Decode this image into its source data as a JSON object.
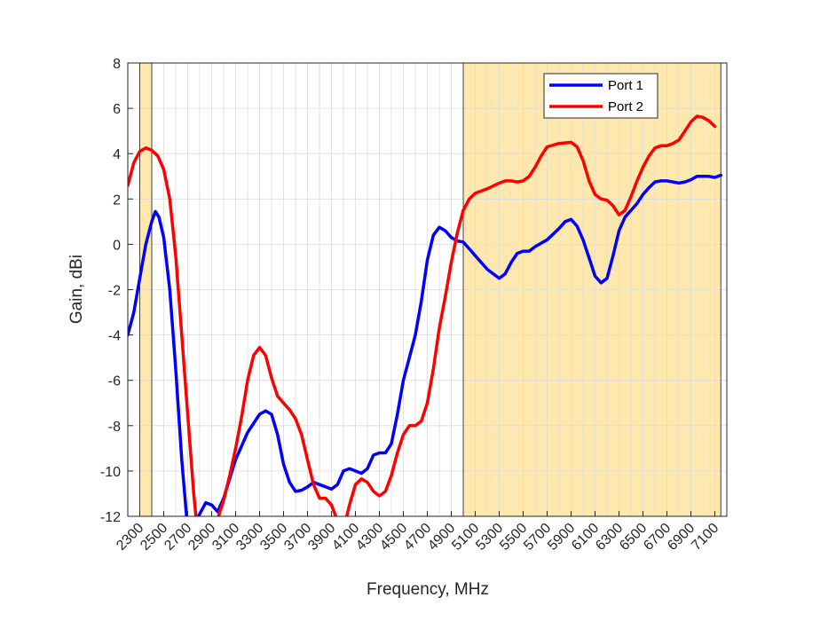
{
  "chart_data": {
    "type": "line",
    "xlabel": "Frequency, MHz",
    "ylabel": "Gain, dBi",
    "xlim": [
      2200,
      7200
    ],
    "ylim": [
      -12,
      8
    ],
    "x_ticks": [
      2300,
      2500,
      2700,
      2900,
      3100,
      3300,
      3500,
      3700,
      3900,
      4100,
      4300,
      4500,
      4700,
      4900,
      5100,
      5300,
      5500,
      5700,
      5900,
      6100,
      6300,
      6500,
      6700,
      6900,
      7100
    ],
    "y_ticks": [
      -12,
      -10,
      -8,
      -6,
      -4,
      -2,
      0,
      2,
      4,
      6,
      8
    ],
    "grid": true,
    "legend_position": "top-right",
    "highlight_bands": [
      {
        "range": [
          2300,
          2400
        ],
        "color": "#FFE8AE"
      },
      {
        "range": [
          5000,
          7150
        ],
        "color": "#FFE8AE"
      }
    ],
    "series": [
      {
        "name": "Port 1",
        "color": "#0000FF",
        "points": [
          [
            2200,
            -4.0
          ],
          [
            2250,
            -3.0
          ],
          [
            2300,
            -1.5
          ],
          [
            2350,
            0.0
          ],
          [
            2400,
            1.0
          ],
          [
            2430,
            1.45
          ],
          [
            2460,
            1.2
          ],
          [
            2500,
            0.3
          ],
          [
            2550,
            -2.0
          ],
          [
            2600,
            -5.5
          ],
          [
            2650,
            -9.5
          ],
          [
            2700,
            -12.6
          ],
          [
            2750,
            -12.4
          ],
          [
            2800,
            -11.9
          ],
          [
            2850,
            -11.4
          ],
          [
            2900,
            -11.5
          ],
          [
            2950,
            -11.8
          ],
          [
            3000,
            -11.2
          ],
          [
            3100,
            -9.5
          ],
          [
            3200,
            -8.3
          ],
          [
            3300,
            -7.5
          ],
          [
            3350,
            -7.35
          ],
          [
            3400,
            -7.5
          ],
          [
            3450,
            -8.4
          ],
          [
            3500,
            -9.7
          ],
          [
            3550,
            -10.5
          ],
          [
            3600,
            -10.9
          ],
          [
            3650,
            -10.85
          ],
          [
            3700,
            -10.7
          ],
          [
            3750,
            -10.5
          ],
          [
            3800,
            -10.6
          ],
          [
            3850,
            -10.7
          ],
          [
            3900,
            -10.8
          ],
          [
            3950,
            -10.6
          ],
          [
            4000,
            -10.0
          ],
          [
            4050,
            -9.9
          ],
          [
            4100,
            -10.0
          ],
          [
            4150,
            -10.1
          ],
          [
            4200,
            -9.9
          ],
          [
            4250,
            -9.3
          ],
          [
            4300,
            -9.2
          ],
          [
            4350,
            -9.2
          ],
          [
            4400,
            -8.8
          ],
          [
            4450,
            -7.5
          ],
          [
            4500,
            -6.0
          ],
          [
            4550,
            -5.0
          ],
          [
            4600,
            -4.0
          ],
          [
            4650,
            -2.5
          ],
          [
            4700,
            -0.7
          ],
          [
            4750,
            0.4
          ],
          [
            4800,
            0.75
          ],
          [
            4850,
            0.6
          ],
          [
            4900,
            0.3
          ],
          [
            4950,
            0.15
          ],
          [
            5000,
            0.1
          ],
          [
            5050,
            -0.2
          ],
          [
            5100,
            -0.5
          ],
          [
            5200,
            -1.1
          ],
          [
            5300,
            -1.5
          ],
          [
            5350,
            -1.3
          ],
          [
            5400,
            -0.8
          ],
          [
            5450,
            -0.4
          ],
          [
            5500,
            -0.3
          ],
          [
            5550,
            -0.3
          ],
          [
            5600,
            -0.1
          ],
          [
            5700,
            0.2
          ],
          [
            5800,
            0.7
          ],
          [
            5850,
            1.0
          ],
          [
            5900,
            1.1
          ],
          [
            5950,
            0.8
          ],
          [
            6000,
            0.2
          ],
          [
            6050,
            -0.6
          ],
          [
            6100,
            -1.4
          ],
          [
            6150,
            -1.7
          ],
          [
            6200,
            -1.5
          ],
          [
            6250,
            -0.5
          ],
          [
            6300,
            0.6
          ],
          [
            6350,
            1.2
          ],
          [
            6400,
            1.5
          ],
          [
            6450,
            1.8
          ],
          [
            6500,
            2.2
          ],
          [
            6550,
            2.5
          ],
          [
            6600,
            2.75
          ],
          [
            6650,
            2.8
          ],
          [
            6700,
            2.8
          ],
          [
            6750,
            2.75
          ],
          [
            6800,
            2.7
          ],
          [
            6850,
            2.75
          ],
          [
            6900,
            2.85
          ],
          [
            6950,
            3.0
          ],
          [
            7000,
            3.0
          ],
          [
            7050,
            3.0
          ],
          [
            7100,
            2.95
          ],
          [
            7150,
            3.05
          ]
        ]
      },
      {
        "name": "Port 2",
        "color": "#FF0000",
        "points": [
          [
            2200,
            2.6
          ],
          [
            2250,
            3.6
          ],
          [
            2300,
            4.1
          ],
          [
            2350,
            4.25
          ],
          [
            2400,
            4.15
          ],
          [
            2450,
            3.9
          ],
          [
            2500,
            3.3
          ],
          [
            2550,
            2.0
          ],
          [
            2600,
            -0.5
          ],
          [
            2650,
            -4.0
          ],
          [
            2700,
            -7.5
          ],
          [
            2750,
            -11.0
          ],
          [
            2780,
            -12.6
          ],
          [
            2800,
            -12.8
          ],
          [
            2850,
            -12.6
          ],
          [
            2900,
            -12.4
          ],
          [
            2950,
            -12.1
          ],
          [
            3000,
            -11.3
          ],
          [
            3050,
            -10.2
          ],
          [
            3100,
            -9.0
          ],
          [
            3150,
            -7.6
          ],
          [
            3200,
            -6.0
          ],
          [
            3250,
            -4.9
          ],
          [
            3300,
            -4.55
          ],
          [
            3350,
            -4.9
          ],
          [
            3400,
            -5.9
          ],
          [
            3450,
            -6.7
          ],
          [
            3500,
            -7.0
          ],
          [
            3550,
            -7.3
          ],
          [
            3600,
            -7.7
          ],
          [
            3650,
            -8.4
          ],
          [
            3700,
            -9.5
          ],
          [
            3750,
            -10.6
          ],
          [
            3800,
            -11.2
          ],
          [
            3850,
            -11.2
          ],
          [
            3900,
            -11.5
          ],
          [
            3950,
            -12.2
          ],
          [
            4000,
            -12.6
          ],
          [
            4050,
            -11.5
          ],
          [
            4100,
            -10.6
          ],
          [
            4150,
            -10.35
          ],
          [
            4200,
            -10.5
          ],
          [
            4250,
            -10.9
          ],
          [
            4300,
            -11.1
          ],
          [
            4350,
            -10.9
          ],
          [
            4400,
            -10.2
          ],
          [
            4450,
            -9.2
          ],
          [
            4500,
            -8.4
          ],
          [
            4550,
            -8.0
          ],
          [
            4600,
            -8.0
          ],
          [
            4650,
            -7.8
          ],
          [
            4700,
            -7.0
          ],
          [
            4750,
            -5.5
          ],
          [
            4800,
            -3.7
          ],
          [
            4850,
            -2.3
          ],
          [
            4900,
            -0.8
          ],
          [
            4950,
            0.5
          ],
          [
            5000,
            1.5
          ],
          [
            5050,
            2.0
          ],
          [
            5100,
            2.25
          ],
          [
            5200,
            2.45
          ],
          [
            5300,
            2.7
          ],
          [
            5350,
            2.8
          ],
          [
            5400,
            2.8
          ],
          [
            5450,
            2.75
          ],
          [
            5500,
            2.8
          ],
          [
            5550,
            3.0
          ],
          [
            5600,
            3.4
          ],
          [
            5650,
            3.9
          ],
          [
            5700,
            4.3
          ],
          [
            5800,
            4.45
          ],
          [
            5900,
            4.5
          ],
          [
            5950,
            4.3
          ],
          [
            6000,
            3.7
          ],
          [
            6050,
            2.8
          ],
          [
            6100,
            2.2
          ],
          [
            6150,
            2.0
          ],
          [
            6200,
            1.95
          ],
          [
            6250,
            1.7
          ],
          [
            6300,
            1.3
          ],
          [
            6350,
            1.5
          ],
          [
            6400,
            2.1
          ],
          [
            6450,
            2.8
          ],
          [
            6500,
            3.4
          ],
          [
            6550,
            3.9
          ],
          [
            6600,
            4.25
          ],
          [
            6650,
            4.35
          ],
          [
            6700,
            4.35
          ],
          [
            6750,
            4.45
          ],
          [
            6800,
            4.6
          ],
          [
            6850,
            5.0
          ],
          [
            6900,
            5.4
          ],
          [
            6950,
            5.65
          ],
          [
            7000,
            5.6
          ],
          [
            7050,
            5.45
          ],
          [
            7100,
            5.2
          ]
        ]
      }
    ]
  }
}
